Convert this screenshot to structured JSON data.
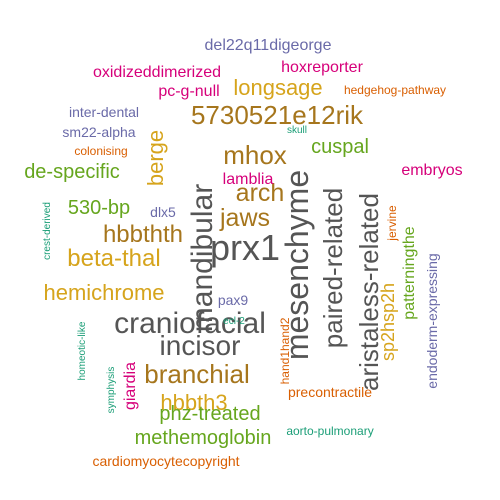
{
  "colors": {
    "gray": "#555555",
    "gold": "#d6a41c",
    "orange": "#d95f02",
    "green": "#66a61e",
    "brown": "#a6761d",
    "magenta": "#d6007a",
    "indigo": "#6a6aa8",
    "teal": "#1b9e77"
  },
  "words": [
    {
      "text": "prx1",
      "color": "gray"
    },
    {
      "text": "mesenchyme",
      "color": "gray"
    },
    {
      "text": "mandibular",
      "color": "gray"
    },
    {
      "text": "paired-related",
      "color": "gray"
    },
    {
      "text": "aristaless-related",
      "color": "gray"
    },
    {
      "text": "craniofacial",
      "color": "gray"
    },
    {
      "text": "incisor",
      "color": "gray"
    },
    {
      "text": "5730521e12rik",
      "color": "brown"
    },
    {
      "text": "branchial",
      "color": "brown"
    },
    {
      "text": "mhox",
      "color": "brown"
    },
    {
      "text": "arch",
      "color": "brown"
    },
    {
      "text": "jaws",
      "color": "brown"
    },
    {
      "text": "hbbthth",
      "color": "brown"
    },
    {
      "text": "beta-thal",
      "color": "gold"
    },
    {
      "text": "hemichrome",
      "color": "gold"
    },
    {
      "text": "longsage",
      "color": "gold"
    },
    {
      "text": "berge",
      "color": "gold"
    },
    {
      "text": "hbbth3",
      "color": "gold"
    },
    {
      "text": "sp2hsp2h",
      "color": "gold"
    },
    {
      "text": "cuspal",
      "color": "green"
    },
    {
      "text": "de-specific",
      "color": "green"
    },
    {
      "text": "530-bp",
      "color": "green"
    },
    {
      "text": "phz-treated",
      "color": "green"
    },
    {
      "text": "methemoglobin",
      "color": "green"
    },
    {
      "text": "patterningthe",
      "color": "green"
    },
    {
      "text": "oxidizeddimerized",
      "color": "magenta"
    },
    {
      "text": "hoxreporter",
      "color": "magenta"
    },
    {
      "text": "pc-g-null",
      "color": "magenta"
    },
    {
      "text": "lamblia",
      "color": "magenta"
    },
    {
      "text": "embryos",
      "color": "magenta"
    },
    {
      "text": "giardia",
      "color": "magenta"
    },
    {
      "text": "del22q11digeorge",
      "color": "indigo"
    },
    {
      "text": "inter-dental",
      "color": "indigo"
    },
    {
      "text": "sm22-alpha",
      "color": "indigo"
    },
    {
      "text": "dlx5",
      "color": "indigo"
    },
    {
      "text": "pax9",
      "color": "indigo"
    },
    {
      "text": "endoderm-expressing",
      "color": "indigo"
    },
    {
      "text": "hedgehog-pathway",
      "color": "orange"
    },
    {
      "text": "colonising",
      "color": "orange"
    },
    {
      "text": "jervine",
      "color": "orange"
    },
    {
      "text": "hand1hand2",
      "color": "orange"
    },
    {
      "text": "precontractile",
      "color": "orange"
    },
    {
      "text": "cardiomyocytecopyright",
      "color": "orange"
    },
    {
      "text": "skull",
      "color": "teal"
    },
    {
      "text": "crest-derived",
      "color": "teal"
    },
    {
      "text": "ecl-2",
      "color": "teal"
    },
    {
      "text": "homeotic-like",
      "color": "teal"
    },
    {
      "text": "symphysis",
      "color": "teal"
    },
    {
      "text": "aorto-pulmonary",
      "color": "teal"
    }
  ]
}
